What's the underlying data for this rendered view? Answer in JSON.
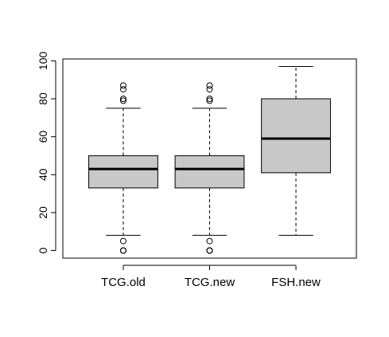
{
  "chart_data": {
    "type": "box",
    "title": "",
    "xlabel": "",
    "ylabel": "",
    "ylim": [
      -4,
      101
    ],
    "yticks": [
      0,
      20,
      40,
      60,
      80,
      100
    ],
    "y_tick_labels": [
      "0",
      "20",
      "40",
      "60",
      "80",
      "100"
    ],
    "grid": false,
    "categories": [
      "TCG.old",
      "TCG.new",
      "FSH.new"
    ],
    "box_fill": "#c8c8c8",
    "line_color": "#000000",
    "boxes": [
      {
        "name": "TCG.old",
        "whisker_low": 8,
        "q1": 33,
        "median": 43,
        "q3": 50,
        "whisker_high": 75,
        "outliers": [
          0,
          0,
          0,
          5,
          79,
          80,
          85,
          87
        ]
      },
      {
        "name": "TCG.new",
        "whisker_low": 8,
        "q1": 33,
        "median": 43,
        "q3": 50,
        "whisker_high": 75,
        "outliers": [
          0,
          0,
          0,
          5,
          79,
          80,
          85,
          87
        ]
      },
      {
        "name": "FSH.new",
        "whisker_low": 8,
        "q1": 41,
        "median": 59,
        "q3": 80,
        "whisker_high": 97,
        "outliers": []
      }
    ]
  }
}
